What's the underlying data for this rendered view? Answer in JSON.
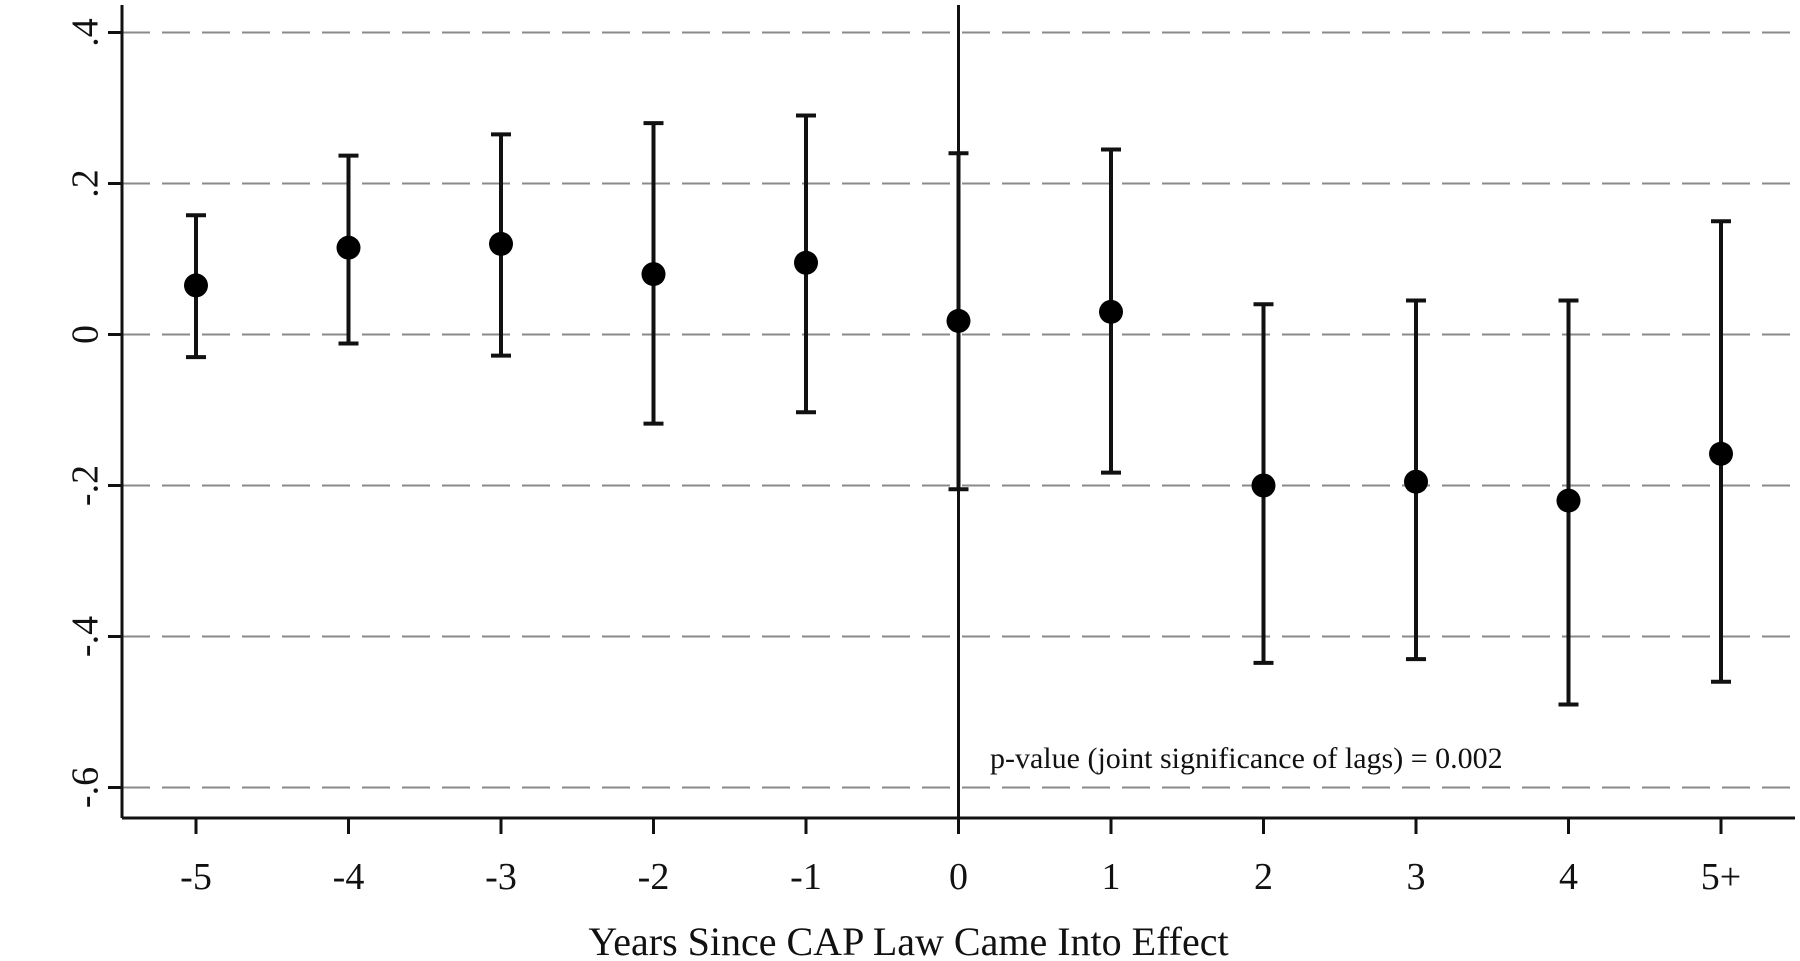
{
  "chart_data": {
    "type": "scatter",
    "subtype": "point-estimate-with-confidence-intervals",
    "categories": [
      "-5",
      "-4",
      "-3",
      "-2",
      "-1",
      "0",
      "1",
      "2",
      "3",
      "4",
      "5+"
    ],
    "estimates": [
      0.065,
      0.115,
      0.12,
      0.08,
      0.095,
      0.018,
      0.03,
      -0.2,
      -0.195,
      -0.22,
      -0.158
    ],
    "ci_lower": [
      -0.03,
      -0.012,
      -0.028,
      -0.118,
      -0.103,
      -0.205,
      -0.183,
      -0.435,
      -0.43,
      -0.49,
      -0.46
    ],
    "ci_upper": [
      0.158,
      0.237,
      0.265,
      0.28,
      0.29,
      0.24,
      0.245,
      0.04,
      0.045,
      0.045,
      0.15
    ],
    "xlabel": "Years Since CAP Law Came Into Effect",
    "ylabel": "",
    "ylim": [
      -0.62,
      0.44
    ],
    "yticks": [
      0.4,
      0.2,
      0,
      -0.2,
      -0.4,
      -0.6
    ],
    "ytick_labels": [
      ".4",
      ".2",
      "0",
      "-.2",
      "-.4",
      "-.6"
    ],
    "grid": true,
    "grid_style": "dashed-horizontal",
    "reference_line_at": "0",
    "annotation": "p-value (joint significance of lags) = 0.002",
    "colors": {
      "marker": "#000000",
      "grid": "#8a8a8a",
      "axis": "#111111"
    }
  }
}
